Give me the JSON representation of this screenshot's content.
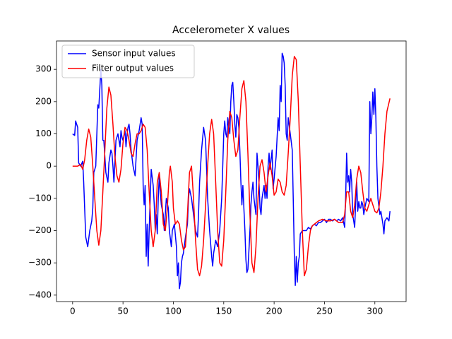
{
  "chart_data": {
    "type": "line",
    "title": "Accelerometer X values",
    "xlim": [
      -16,
      331
    ],
    "ylim": [
      -420,
      388
    ],
    "xticks": [
      0,
      50,
      100,
      150,
      200,
      250,
      300
    ],
    "yticks": [
      {
        "value": -400,
        "label": "−400"
      },
      {
        "value": -300,
        "label": "−300"
      },
      {
        "value": -200,
        "label": "−200"
      },
      {
        "value": -100,
        "label": "−100"
      },
      0,
      100,
      200,
      300
    ],
    "legend": "upper left",
    "series": [
      {
        "name": "Sensor input values",
        "color": "#0000ff",
        "x": [
          0,
          2,
          3,
          5,
          6,
          8,
          10,
          11,
          13,
          15,
          17,
          19,
          20,
          21,
          23,
          25,
          26,
          28,
          29,
          30,
          31,
          33,
          35,
          36,
          38,
          39,
          40,
          41,
          43,
          45,
          47,
          48,
          49,
          50,
          52,
          53,
          54,
          55,
          56,
          57,
          58,
          60,
          62,
          64,
          66,
          68,
          69,
          70,
          71,
          72,
          73,
          74,
          75,
          76,
          77,
          78,
          80,
          81,
          82,
          83,
          84,
          85,
          86,
          87,
          88,
          90,
          91,
          93,
          95,
          96,
          98,
          99,
          101,
          103,
          104,
          105,
          106,
          107,
          108,
          109,
          110,
          112,
          114,
          115,
          116,
          118,
          120,
          122,
          124,
          125,
          126,
          128,
          130,
          132,
          134,
          136,
          138,
          139,
          140,
          142,
          144,
          146,
          148,
          149,
          150,
          151,
          152,
          153,
          154,
          155,
          156,
          157,
          158,
          159,
          160,
          161,
          162,
          163,
          164,
          165,
          166,
          167,
          168,
          169,
          170,
          171,
          172,
          173,
          174,
          175,
          176,
          177,
          178,
          179,
          180,
          182,
          183,
          184,
          185,
          186,
          187,
          188,
          189,
          190,
          191,
          192,
          193,
          194,
          195,
          196,
          197,
          198,
          199,
          200,
          202,
          204,
          205,
          206,
          207,
          208,
          209,
          210,
          211,
          212,
          213,
          214,
          216,
          218,
          219,
          220,
          221,
          222,
          223,
          224,
          225,
          226,
          228,
          230,
          232,
          234,
          236,
          238,
          240,
          242,
          244,
          246,
          248,
          250,
          252,
          254,
          256,
          258,
          260,
          262,
          264,
          266,
          268,
          270,
          271,
          272,
          273,
          274,
          275,
          276,
          277,
          278,
          279,
          280,
          281,
          282,
          283,
          284,
          285,
          286,
          287,
          288,
          289,
          290,
          292,
          294,
          295,
          296,
          297,
          298,
          299,
          300,
          301,
          302,
          303,
          305,
          306,
          308,
          309,
          310,
          312,
          314,
          315
        ],
        "values": [
          100,
          95,
          140,
          120,
          10,
          0,
          15,
          -50,
          -220,
          -250,
          -200,
          -170,
          -130,
          -20,
          0,
          190,
          180,
          300,
          250,
          80,
          80,
          -20,
          -50,
          10,
          50,
          40,
          0,
          -50,
          80,
          100,
          60,
          110,
          90,
          80,
          110,
          60,
          100,
          120,
          130,
          100,
          50,
          0,
          -30,
          80,
          110,
          150,
          130,
          -60,
          -120,
          -60,
          -280,
          -180,
          -310,
          -200,
          -100,
          -10,
          -60,
          -120,
          -200,
          -150,
          -210,
          -100,
          -30,
          -80,
          -120,
          -150,
          -200,
          -100,
          -130,
          -200,
          -250,
          -200,
          -180,
          -250,
          -340,
          -300,
          -380,
          -360,
          -300,
          -280,
          -270,
          -220,
          -180,
          -100,
          -70,
          -100,
          -150,
          -200,
          -220,
          -150,
          -50,
          50,
          120,
          80,
          -100,
          -200,
          -280,
          -310,
          -270,
          -230,
          -250,
          -200,
          -100,
          0,
          100,
          140,
          100,
          90,
          150,
          120,
          100,
          200,
          250,
          260,
          200,
          130,
          90,
          160,
          150,
          120,
          50,
          -50,
          -120,
          -60,
          -130,
          -200,
          -290,
          -330,
          -320,
          -260,
          -200,
          -120,
          -80,
          -50,
          -100,
          -150,
          40,
          0,
          -50,
          -130,
          -150,
          -100,
          -80,
          -60,
          -100,
          -60,
          -100,
          0,
          40,
          -10,
          20,
          50,
          -70,
          -40,
          30,
          150,
          110,
          250,
          200,
          350,
          340,
          320,
          250,
          100,
          80,
          150,
          100,
          50,
          -100,
          -270,
          -370,
          -280,
          -360,
          -300,
          -280,
          -210,
          -200,
          -200,
          -200,
          -190,
          -195,
          -185,
          -180,
          -185,
          -175,
          -175,
          -170,
          -165,
          -175,
          -165,
          -165,
          -170,
          -165,
          -170,
          -165,
          -170,
          -160,
          -190,
          -100,
          40,
          -50,
          -30,
          -80,
          -10,
          -50,
          -150,
          -170,
          -190,
          -110,
          -50,
          -140,
          -110,
          -130,
          -130,
          -110,
          -120,
          -150,
          -130,
          -100,
          -110,
          200,
          100,
          150,
          230,
          160,
          240,
          150,
          0,
          -100,
          -150,
          -140,
          -180,
          -210,
          -170,
          -160,
          -170,
          -140
        ]
      },
      {
        "name": "Filter output values",
        "color": "#ff0000",
        "x": [
          0,
          5,
          8,
          10,
          12,
          14,
          16,
          18,
          20,
          22,
          24,
          26,
          28,
          30,
          32,
          34,
          36,
          38,
          40,
          42,
          44,
          46,
          48,
          50,
          52,
          54,
          56,
          58,
          60,
          62,
          64,
          66,
          68,
          70,
          72,
          74,
          76,
          78,
          80,
          82,
          84,
          86,
          88,
          90,
          92,
          94,
          96,
          97,
          99,
          100,
          102,
          104,
          106,
          108,
          110,
          112,
          114,
          116,
          118,
          120,
          122,
          124,
          126,
          128,
          130,
          132,
          134,
          136,
          138,
          140,
          142,
          144,
          146,
          148,
          150,
          152,
          154,
          156,
          158,
          160,
          162,
          164,
          166,
          168,
          170,
          172,
          174,
          176,
          178,
          180,
          182,
          184,
          186,
          188,
          190,
          192,
          194,
          196,
          198,
          200,
          202,
          204,
          206,
          208,
          210,
          212,
          214,
          216,
          218,
          220,
          222,
          224,
          226,
          228,
          230,
          232,
          234,
          236,
          238,
          240,
          244,
          248,
          252,
          256,
          260,
          264,
          268,
          270,
          272,
          274,
          276,
          278,
          280,
          282,
          284,
          286,
          288,
          290,
          292,
          294,
          296,
          298,
          300,
          302,
          304,
          306,
          308,
          310,
          312,
          315
        ],
        "values": [
          0,
          0,
          5,
          -10,
          20,
          80,
          115,
          90,
          0,
          -100,
          -200,
          -245,
          -200,
          -80,
          50,
          180,
          245,
          220,
          130,
          30,
          -30,
          -50,
          -10,
          70,
          120,
          110,
          80,
          40,
          30,
          70,
          100,
          100,
          110,
          130,
          120,
          50,
          -80,
          -200,
          -250,
          -200,
          -50,
          -20,
          -80,
          -180,
          -200,
          -130,
          -20,
          0,
          -50,
          -130,
          -180,
          -170,
          -180,
          -230,
          -260,
          -250,
          -150,
          -20,
          0,
          -100,
          -230,
          -320,
          -340,
          -310,
          -230,
          -120,
          0,
          100,
          145,
          100,
          -50,
          -200,
          -300,
          -310,
          -230,
          -80,
          80,
          170,
          150,
          80,
          30,
          50,
          150,
          240,
          265,
          200,
          40,
          -150,
          -300,
          -330,
          -250,
          -100,
          0,
          20,
          -20,
          -80,
          -30,
          10,
          -30,
          -90,
          -80,
          -40,
          -50,
          -80,
          -90,
          -60,
          40,
          150,
          280,
          340,
          330,
          200,
          0,
          -200,
          -340,
          -320,
          -250,
          -200,
          -185,
          -180,
          -170,
          -165,
          -170,
          -170,
          -165,
          -175,
          -175,
          -150,
          -80,
          -80,
          -140,
          -160,
          -120,
          -40,
          0,
          -20,
          -80,
          -130,
          -140,
          -120,
          -100,
          -120,
          -140,
          -145,
          -130,
          -80,
          0,
          100,
          170,
          210
        ]
      }
    ]
  }
}
